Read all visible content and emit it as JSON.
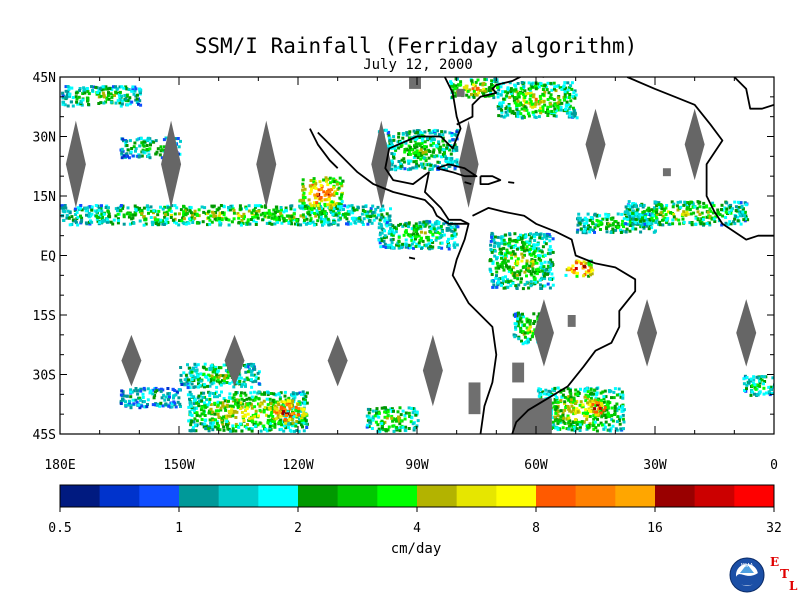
{
  "chart_data": {
    "type": "heatmap",
    "title": "SSM/I Rainfall (Ferriday algorithm)",
    "subtitle": "July 12, 2000",
    "x_ticks": [
      {
        "lon": -180,
        "label": "180E"
      },
      {
        "lon": -150,
        "label": "150W"
      },
      {
        "lon": -120,
        "label": "120W"
      },
      {
        "lon": -90,
        "label": "90W"
      },
      {
        "lon": -60,
        "label": "60W"
      },
      {
        "lon": -30,
        "label": "30W"
      },
      {
        "lon": 0,
        "label": "0"
      }
    ],
    "y_ticks": [
      {
        "lat": 45,
        "label": "45N"
      },
      {
        "lat": 30,
        "label": "30N"
      },
      {
        "lat": 15,
        "label": "15N"
      },
      {
        "lat": 0,
        "label": "EQ"
      },
      {
        "lat": -15,
        "label": "15S"
      },
      {
        "lat": -30,
        "label": "30S"
      },
      {
        "lat": -45,
        "label": "45S"
      }
    ],
    "xlim": [
      -180,
      0
    ],
    "ylim": [
      -45,
      45
    ],
    "colorbar": {
      "unit_label": "cm/day",
      "tick_labels": [
        "0.5",
        "1",
        "2",
        "4",
        "8",
        "16",
        "32"
      ],
      "colors": [
        "#001a80",
        "#0033cc",
        "#0f4dff",
        "#009999",
        "#00cccc",
        "#00ffff",
        "#009900",
        "#00c800",
        "#00ff00",
        "#b3b300",
        "#e6e600",
        "#ffff00",
        "#ff5a00",
        "#ff8000",
        "#ffa600",
        "#990000",
        "#cc0000",
        "#ff0000"
      ]
    },
    "swath_gaps": [
      {
        "lon": -176,
        "lat_top": 34,
        "lat_bot": 12
      },
      {
        "lon": -152,
        "lat_top": 34,
        "lat_bot": 12
      },
      {
        "lon": -128,
        "lat_top": 34,
        "lat_bot": 12
      },
      {
        "lon": -99,
        "lat_top": 34,
        "lat_bot": 12
      },
      {
        "lon": -77,
        "lat_top": 34,
        "lat_bot": 12
      },
      {
        "lon": -45,
        "lat_top": 37,
        "lat_bot": 19
      },
      {
        "lon": -20,
        "lat_top": 37,
        "lat_bot": 19
      },
      {
        "lon": -162,
        "lat_top": -20,
        "lat_bot": -33
      },
      {
        "lon": -136,
        "lat_top": -20,
        "lat_bot": -33
      },
      {
        "lon": -110,
        "lat_top": -20,
        "lat_bot": -33
      },
      {
        "lon": -86,
        "lat_top": -20,
        "lat_bot": -38
      },
      {
        "lon": -58,
        "lat_top": -11,
        "lat_bot": -28
      },
      {
        "lon": -32,
        "lat_top": -11,
        "lat_bot": -28
      },
      {
        "lon": -7,
        "lat_top": -11,
        "lat_bot": -28
      }
    ],
    "rain_bands": [
      {
        "lon0": -180,
        "lon1": -97,
        "lat0": 8,
        "lat1": 13,
        "level": 8
      },
      {
        "lon0": -120,
        "lon1": -109,
        "lat0": 12,
        "lat1": 20,
        "level": 13
      },
      {
        "lon0": -100,
        "lon1": -80,
        "lat0": 2,
        "lat1": 9,
        "level": 7
      },
      {
        "lon0": -72,
        "lon1": -56,
        "lat0": -8,
        "lat1": 6,
        "level": 8
      },
      {
        "lon0": -50,
        "lon1": -30,
        "lat0": 6,
        "lat1": 11,
        "level": 7
      },
      {
        "lon0": -38,
        "lon1": -7,
        "lat0": 8,
        "lat1": 14,
        "level": 8
      },
      {
        "lon0": -53,
        "lon1": -46,
        "lat0": -5,
        "lat1": -1,
        "level": 15
      },
      {
        "lon0": -60,
        "lon1": -38,
        "lat0": -44,
        "lat1": -33,
        "level": 9
      },
      {
        "lon0": -48,
        "lon1": -42,
        "lat0": -40,
        "lat1": -36,
        "level": 14
      },
      {
        "lon0": -148,
        "lon1": -118,
        "lat0": -44,
        "lat1": -34,
        "level": 9
      },
      {
        "lon0": -128,
        "lon1": -118,
        "lat0": -42,
        "lat1": -36,
        "level": 14
      },
      {
        "lon0": -150,
        "lon1": -130,
        "lat0": -33,
        "lat1": -27,
        "level": 7
      },
      {
        "lon0": -103,
        "lon1": -90,
        "lat0": -44,
        "lat1": -38,
        "level": 8
      },
      {
        "lon0": -70,
        "lon1": -50,
        "lat0": 35,
        "lat1": 44,
        "level": 9
      },
      {
        "lon0": -82,
        "lon1": -70,
        "lat0": 40,
        "lat1": 45,
        "level": 10
      },
      {
        "lon0": -100,
        "lon1": -80,
        "lat0": 22,
        "lat1": 32,
        "level": 7
      },
      {
        "lon0": -165,
        "lon1": -150,
        "lat0": 25,
        "lat1": 30,
        "level": 6
      },
      {
        "lon0": -180,
        "lon1": -160,
        "lat0": 38,
        "lat1": 43,
        "level": 7
      },
      {
        "lon0": -165,
        "lon1": -150,
        "lat0": -38,
        "lat1": -33,
        "level": 5
      },
      {
        "lon0": -8,
        "lon1": 0,
        "lat0": -35,
        "lat1": -30,
        "level": 7
      },
      {
        "lon0": -66,
        "lon1": -58,
        "lat0": -22,
        "lat1": -14,
        "level": 8
      }
    ],
    "coastline": [
      [
        [
          -83,
          45
        ],
        [
          -81,
          41
        ],
        [
          -80,
          35
        ],
        [
          -79,
          32
        ],
        [
          -81,
          27
        ],
        [
          -84,
          30
        ],
        [
          -90,
          30
        ],
        [
          -97,
          27
        ],
        [
          -98,
          22
        ],
        [
          -96,
          19
        ],
        [
          -91,
          18
        ],
        [
          -87,
          21
        ],
        [
          -88,
          16
        ],
        [
          -84,
          12
        ],
        [
          -82,
          9
        ],
        [
          -79,
          9
        ],
        [
          -77,
          8
        ],
        [
          -78,
          4
        ],
        [
          -80,
          -1
        ],
        [
          -81,
          -5
        ],
        [
          -77,
          -12
        ],
        [
          -71,
          -18
        ],
        [
          -70,
          -25
        ],
        [
          -71,
          -32
        ],
        [
          -73,
          -38
        ],
        [
          -74,
          -45
        ]
      ],
      [
        [
          -115,
          31
        ],
        [
          -110,
          26
        ],
        [
          -105,
          21
        ],
        [
          -101,
          18
        ],
        [
          -96,
          16
        ],
        [
          -92,
          15
        ],
        [
          -88,
          14
        ],
        [
          -86,
          12
        ],
        [
          -85,
          10
        ],
        [
          -82,
          8
        ],
        [
          -79,
          8
        ],
        [
          -77,
          8
        ]
      ],
      [
        [
          -117,
          32
        ],
        [
          -115,
          28
        ],
        [
          -112,
          24
        ],
        [
          -110,
          22
        ]
      ],
      [
        [
          -76,
          10
        ],
        [
          -72,
          12
        ],
        [
          -68,
          11
        ],
        [
          -63,
          10
        ],
        [
          -60,
          8
        ],
        [
          -55,
          6
        ],
        [
          -51,
          4
        ],
        [
          -50,
          0
        ],
        [
          -45,
          -2
        ],
        [
          -40,
          -3
        ],
        [
          -35,
          -6
        ],
        [
          -35,
          -9
        ],
        [
          -39,
          -14
        ],
        [
          -39,
          -18
        ],
        [
          -41,
          -22
        ],
        [
          -45,
          -24
        ],
        [
          -48,
          -28
        ],
        [
          -52,
          -33
        ],
        [
          -57,
          -36
        ],
        [
          -62,
          -39
        ],
        [
          -65,
          -42
        ],
        [
          -66,
          -45
        ]
      ],
      [
        [
          -58,
          45
        ],
        [
          -62,
          46
        ],
        [
          -66,
          44
        ],
        [
          -70,
          43
        ],
        [
          -71,
          42
        ],
        [
          -70,
          41
        ],
        [
          -74,
          40
        ],
        [
          -76,
          38
        ],
        [
          -76,
          35
        ],
        [
          -80,
          33
        ]
      ],
      [
        [
          -37,
          45
        ],
        [
          -30,
          42
        ],
        [
          -25,
          40
        ],
        [
          -20,
          38
        ],
        [
          -16,
          33
        ],
        [
          -13,
          29
        ],
        [
          -17,
          23
        ],
        [
          -17,
          15
        ],
        [
          -15,
          11
        ],
        [
          -13,
          8
        ],
        [
          -7,
          4
        ],
        [
          -4,
          5
        ],
        [
          0,
          5
        ]
      ],
      [
        [
          -10,
          45
        ],
        [
          -7,
          42
        ],
        [
          -6,
          37
        ],
        [
          -3,
          37
        ],
        [
          0,
          38
        ]
      ],
      [
        [
          -85,
          22
        ],
        [
          -82,
          23
        ],
        [
          -78,
          22
        ],
        [
          -75,
          20
        ],
        [
          -78,
          20
        ],
        [
          -81,
          21
        ],
        [
          -85,
          22
        ]
      ],
      [
        [
          -74,
          20
        ],
        [
          -71,
          20
        ],
        [
          -69,
          19
        ],
        [
          -72,
          18
        ],
        [
          -74,
          18
        ],
        [
          -74,
          20
        ]
      ],
      [
        [
          -67,
          18.5
        ],
        [
          -65.5,
          18.3
        ]
      ],
      [
        [
          -78,
          18.5
        ],
        [
          -76.3,
          18
        ]
      ],
      [
        [
          -92,
          -0.5
        ],
        [
          -90.5,
          -0.8
        ]
      ]
    ],
    "land_gray": [
      {
        "lon": -66,
        "lat": -49,
        "w": 10,
        "h": 13
      },
      {
        "lon": -77,
        "lat": -40,
        "w": 3,
        "h": 8
      },
      {
        "lon": -66,
        "lat": -32,
        "w": 3,
        "h": 5
      },
      {
        "lon": -52,
        "lat": -18,
        "w": 2,
        "h": 3
      },
      {
        "lon": -28,
        "lat": 20,
        "w": 2,
        "h": 2
      },
      {
        "lon": -92,
        "lat": 42,
        "w": 3,
        "h": 3
      },
      {
        "lon": -80,
        "lat": 40,
        "w": 2,
        "h": 2
      }
    ]
  },
  "logo": {
    "name": "NOAA",
    "etl_letters": [
      "E",
      "T",
      "L"
    ],
    "etl_color": "#e00000"
  }
}
